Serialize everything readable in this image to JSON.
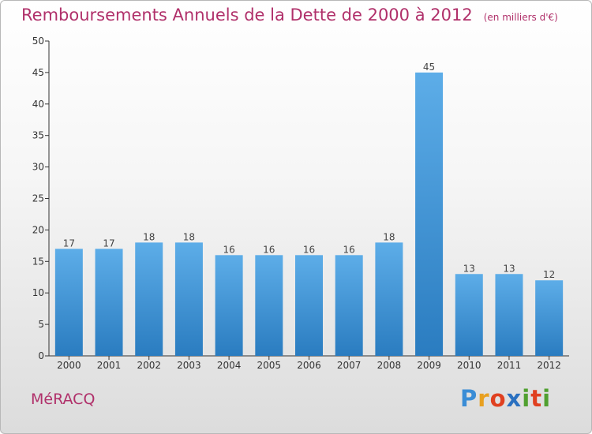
{
  "title": "Remboursements Annuels de la Dette de 2000 à 2012",
  "unit_note": "(en milliers d'€)",
  "commune": "MéRACQ",
  "logo": {
    "letters": [
      "P",
      "r",
      "o",
      "x",
      "i",
      "t",
      "i"
    ],
    "colors": [
      "#3a8dd6",
      "#e8a020",
      "#e04020",
      "#2a70c0",
      "#50a030",
      "#e04020",
      "#50a030"
    ]
  },
  "colors": {
    "bar_light": "#5dade8",
    "bar_dark": "#2a7cc0",
    "title": "#b0306a"
  },
  "chart_data": {
    "type": "bar",
    "title": "Remboursements Annuels de la Dette de 2000 à 2012",
    "categories": [
      "2000",
      "2001",
      "2002",
      "2003",
      "2004",
      "2005",
      "2006",
      "2007",
      "2008",
      "2009",
      "2010",
      "2011",
      "2012"
    ],
    "values": [
      17,
      17,
      18,
      18,
      16,
      16,
      16,
      16,
      18,
      45,
      13,
      13,
      12
    ],
    "data_labels": [
      "17",
      "17",
      "18",
      "18",
      "16",
      "16",
      "16",
      "16",
      "18",
      "45",
      "13",
      "13",
      "12"
    ],
    "yticks": [
      "0",
      "5",
      "10",
      "15",
      "20",
      "25",
      "30",
      "35",
      "40",
      "45",
      "50"
    ],
    "ylim": [
      0,
      50
    ],
    "xlabel": "",
    "ylabel": "",
    "grid": false
  }
}
